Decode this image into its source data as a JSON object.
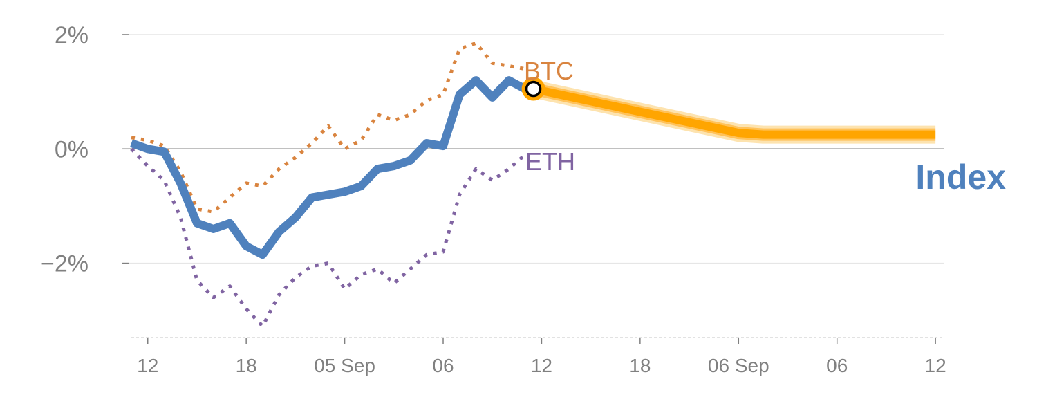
{
  "chart_data": {
    "type": "line",
    "title": "",
    "xlabel": "",
    "ylabel": "",
    "ylim": [
      -3.3,
      2.0
    ],
    "yticks": [
      {
        "value": 2,
        "label": "2%"
      },
      {
        "value": 0,
        "label": "0%"
      },
      {
        "value": -2,
        "label": "−2%"
      }
    ],
    "xlim": [
      0,
      49.5
    ],
    "xticks": [
      {
        "pos": 1,
        "label": "12"
      },
      {
        "pos": 7,
        "label": "18"
      },
      {
        "pos": 13,
        "label": "05 Sep"
      },
      {
        "pos": 19,
        "label": "06"
      },
      {
        "pos": 25,
        "label": "12"
      },
      {
        "pos": 31,
        "label": "18"
      },
      {
        "pos": 37,
        "label": "06 Sep"
      },
      {
        "pos": 43,
        "label": "06"
      },
      {
        "pos": 49,
        "label": "12"
      }
    ],
    "series": [
      {
        "name": "BTC",
        "label": "BTC",
        "color": "#d9843f",
        "style": "dotted",
        "x": [
          0,
          1,
          2,
          3,
          4,
          5,
          6,
          7,
          8,
          9,
          10,
          11,
          12,
          13,
          14,
          15,
          16,
          17,
          18,
          19,
          20,
          21,
          22,
          23,
          24
        ],
        "y": [
          0.2,
          0.15,
          0.05,
          -0.4,
          -1.05,
          -1.1,
          -0.85,
          -0.6,
          -0.65,
          -0.35,
          -0.15,
          0.1,
          0.4,
          0.0,
          0.15,
          0.6,
          0.5,
          0.6,
          0.85,
          0.95,
          1.75,
          1.85,
          1.5,
          1.45,
          1.4
        ]
      },
      {
        "name": "ETH",
        "label": "ETH",
        "color": "#8064a2",
        "style": "dotted",
        "x": [
          0,
          1,
          2,
          3,
          4,
          5,
          6,
          7,
          8,
          9,
          10,
          11,
          12,
          13,
          14,
          15,
          16,
          17,
          18,
          19,
          20,
          21,
          22,
          23,
          24
        ],
        "y": [
          0.0,
          -0.3,
          -0.55,
          -1.2,
          -2.3,
          -2.6,
          -2.4,
          -2.8,
          -3.1,
          -2.55,
          -2.25,
          -2.05,
          -2.0,
          -2.45,
          -2.2,
          -2.1,
          -2.35,
          -2.1,
          -1.85,
          -1.8,
          -0.8,
          -0.35,
          -0.55,
          -0.35,
          -0.1
        ]
      },
      {
        "name": "Index",
        "label": "Index",
        "color": "#4f81bd",
        "style": "solid",
        "x": [
          0,
          1,
          2,
          3,
          4,
          5,
          6,
          7,
          8,
          9,
          10,
          11,
          12,
          13,
          14,
          15,
          16,
          17,
          18,
          19,
          20,
          21,
          22,
          23,
          24
        ],
        "y": [
          0.1,
          0.0,
          -0.05,
          -0.6,
          -1.3,
          -1.4,
          -1.3,
          -1.7,
          -1.85,
          -1.45,
          -1.2,
          -0.85,
          -0.8,
          -0.75,
          -0.65,
          -0.35,
          -0.3,
          -0.2,
          0.1,
          0.05,
          0.95,
          1.2,
          0.9,
          1.2,
          1.05
        ]
      },
      {
        "name": "Forecast",
        "label": "",
        "color": "#ffa500",
        "style": "band",
        "x": [
          24.5,
          37,
          38.5,
          43,
          49
        ],
        "y": [
          1.05,
          0.28,
          0.25,
          0.25,
          0.25
        ]
      }
    ],
    "marker": {
      "x": 24.5,
      "y": 1.05
    }
  }
}
